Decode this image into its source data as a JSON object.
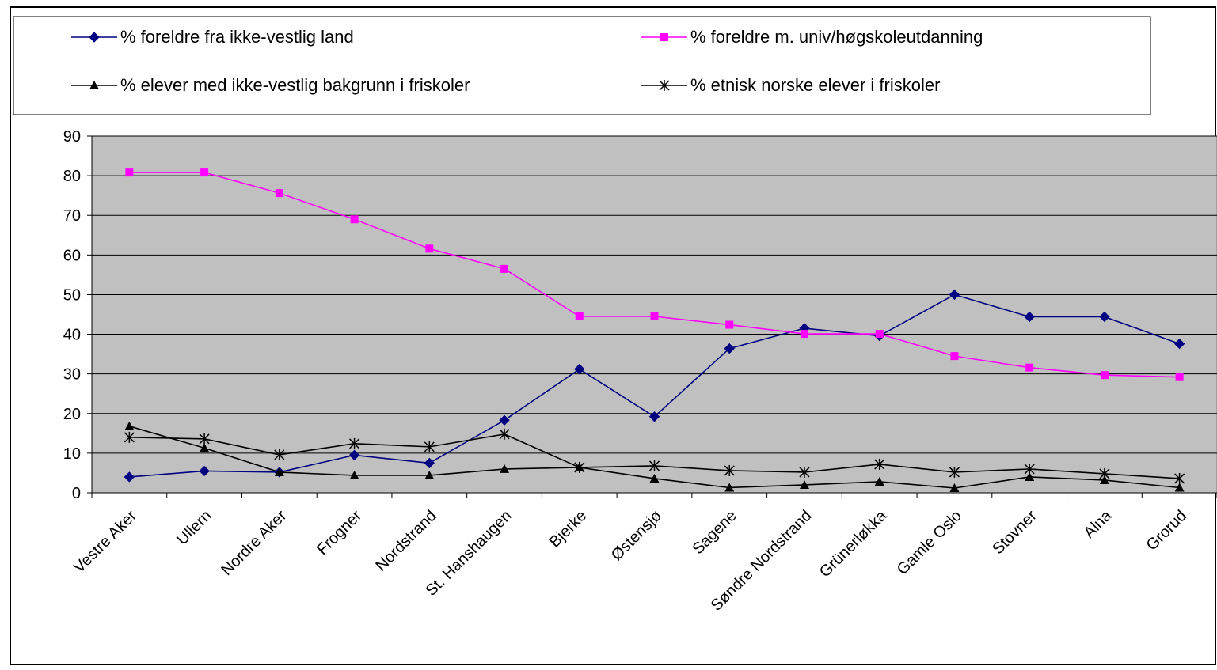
{
  "chart_data": {
    "type": "line",
    "title": "",
    "xlabel": "",
    "ylabel": "",
    "ylim": [
      0,
      90
    ],
    "yticks": [
      0,
      10,
      20,
      30,
      40,
      50,
      60,
      70,
      80,
      90
    ],
    "grid": "horizontal",
    "legend_position": "top",
    "categories": [
      "Vestre Aker",
      "Ullern",
      "Nordre Aker",
      "Frogner",
      "Nordstrand",
      "St. Hanshaugen",
      "Bjerke",
      "Østensjø",
      "Sagene",
      "Søndre Nordstrand",
      "Grünerløkka",
      "Gamle Oslo",
      "Stovner",
      "Alna",
      "Grorud"
    ],
    "series": [
      {
        "name": "% foreldre fra ikke-vestlig land",
        "color": "#000080",
        "marker": "diamond",
        "values": [
          4,
          5.5,
          5.2,
          9.5,
          7.5,
          18.3,
          31.2,
          19.2,
          36.4,
          41.5,
          39.6,
          50,
          44.4,
          44.4,
          37.6
        ]
      },
      {
        "name": "% foreldre m. univ/høgskoleutdanning",
        "color": "#ff00ff",
        "marker": "square",
        "values": [
          80.8,
          80.8,
          75.6,
          69,
          61.6,
          56.5,
          44.5,
          44.5,
          42.4,
          40.1,
          40.1,
          34.5,
          31.6,
          29.7,
          29.2
        ]
      },
      {
        "name": "% elever med ikke-vestlig bakgrunn i friskoler",
        "color": "#000000",
        "marker": "triangle",
        "values": [
          16.8,
          11.3,
          5.2,
          4.4,
          4.4,
          6,
          6.4,
          3.6,
          1.3,
          2,
          2.8,
          1.2,
          4,
          3.2,
          1.3
        ]
      },
      {
        "name": "% etnisk norske elever i friskoler",
        "color": "#000000",
        "marker": "star",
        "values": [
          14,
          13.6,
          9.6,
          12.4,
          11.6,
          14.8,
          6.4,
          6.8,
          5.6,
          5.2,
          7.2,
          5.2,
          6,
          4.8,
          3.6
        ]
      }
    ]
  }
}
